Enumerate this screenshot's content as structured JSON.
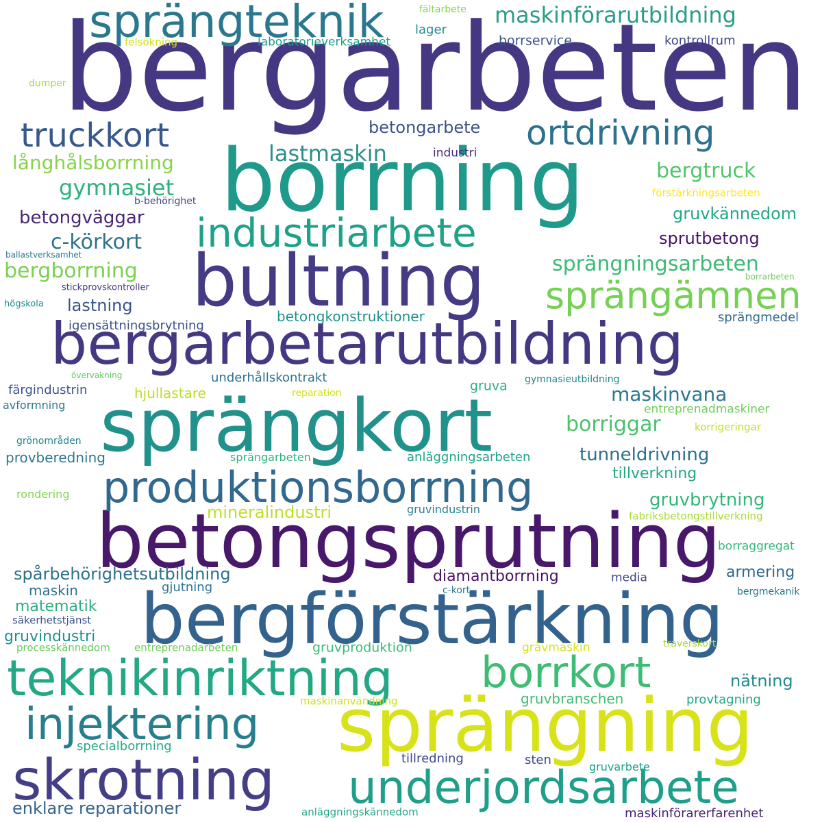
{
  "words": [
    {
      "text": "bergarbeten",
      "color": "#453781"
    },
    {
      "text": "borrning",
      "color": "#1f9a8a"
    },
    {
      "text": "bultning",
      "color": "#443b84"
    },
    {
      "text": "bergarbetarutbildning",
      "color": "#453781"
    },
    {
      "text": "sprängkort",
      "color": "#21918c"
    },
    {
      "text": "betongsprutning",
      "color": "#48186a"
    },
    {
      "text": "bergförstärkning",
      "color": "#33638d"
    },
    {
      "text": "sprängning",
      "color": "#d8e219"
    },
    {
      "text": "sprängteknik",
      "color": "#2a788e"
    },
    {
      "text": "teknikinriktning",
      "color": "#22a884"
    },
    {
      "text": "skrotning",
      "color": "#433e85"
    },
    {
      "text": "injektering",
      "color": "#277f8e"
    },
    {
      "text": "underjordsarbete",
      "color": "#1f9e89"
    },
    {
      "text": "borrkort",
      "color": "#3dbc74"
    },
    {
      "text": "produktionsborrning",
      "color": "#31688e"
    },
    {
      "text": "industriarbete",
      "color": "#1fa188"
    },
    {
      "text": "ortdrivning",
      "color": "#2c728e"
    },
    {
      "text": "truckkort",
      "color": "#38588c"
    },
    {
      "text": "sprängämnen",
      "color": "#75d054"
    },
    {
      "text": "maskinförarutbildning",
      "color": "#2a9d8a"
    },
    {
      "text": "sprängningsarbeten",
      "color": "#3bbb75"
    },
    {
      "text": "lastmaskin",
      "color": "#2c8f8c"
    },
    {
      "text": "betongarbete",
      "color": "#3b528b"
    },
    {
      "text": "långhålsborrning",
      "color": "#86d549"
    },
    {
      "text": "gymnasiet",
      "color": "#2db27d"
    },
    {
      "text": "bergtruck",
      "color": "#52c569"
    },
    {
      "text": "gruvkännedom",
      "color": "#23a983"
    },
    {
      "text": "sprutbetong",
      "color": "#471365"
    },
    {
      "text": "betongväggar",
      "color": "#482677"
    },
    {
      "text": "c-körkort",
      "color": "#2c728e"
    },
    {
      "text": "bergborrning",
      "color": "#7ad151"
    },
    {
      "text": "lastning",
      "color": "#3a538b"
    },
    {
      "text": "igensättningsbrytning",
      "color": "#3b518b"
    },
    {
      "text": "betongkonstruktioner",
      "color": "#21918c"
    },
    {
      "text": "sprängmedel",
      "color": "#31688e"
    },
    {
      "text": "maskinvana",
      "color": "#2a788e"
    },
    {
      "text": "borriggar",
      "color": "#4ac16d"
    },
    {
      "text": "tunneldrivning",
      "color": "#2d708e"
    },
    {
      "text": "tillverkning",
      "color": "#22a884"
    },
    {
      "text": "gruvbrytning",
      "color": "#35b779"
    },
    {
      "text": "mineralindustri",
      "color": "#bddf26"
    },
    {
      "text": "gruvindustrin",
      "color": "#26828e"
    },
    {
      "text": "fabriksbetongstillverkning",
      "color": "#a8db34"
    },
    {
      "text": "borraggregat",
      "color": "#35b779"
    },
    {
      "text": "armering",
      "color": "#31688e"
    },
    {
      "text": "spårbehörighetsutbildning",
      "color": "#2d708e"
    },
    {
      "text": "diamantborrning",
      "color": "#471164"
    },
    {
      "text": "media",
      "color": "#414487"
    },
    {
      "text": "gjutning",
      "color": "#2c738e"
    },
    {
      "text": "c-kort",
      "color": "#2a788e"
    },
    {
      "text": "bergmekanik",
      "color": "#2a788e"
    },
    {
      "text": "maskin",
      "color": "#2e6f8e"
    },
    {
      "text": "matematik",
      "color": "#2ab07f"
    },
    {
      "text": "säkerhetstjänst",
      "color": "#3b518b"
    },
    {
      "text": "gruvindustri",
      "color": "#20928c"
    },
    {
      "text": "processkännedom",
      "color": "#67cc5c"
    },
    {
      "text": "entreprenadarbeten",
      "color": "#6ece58"
    },
    {
      "text": "gruvproduktion",
      "color": "#3bbb75"
    },
    {
      "text": "grävmaskin",
      "color": "#d8e219"
    },
    {
      "text": "traverskort",
      "color": "#a5db36"
    },
    {
      "text": "nätning",
      "color": "#23888e"
    },
    {
      "text": "maskinanvändning",
      "color": "#cde11d"
    },
    {
      "text": "gruvbranschen",
      "color": "#3dbc74"
    },
    {
      "text": "provtagning",
      "color": "#22a785"
    },
    {
      "text": "specialborrning",
      "color": "#25ab82"
    },
    {
      "text": "tillredning",
      "color": "#3e4a89"
    },
    {
      "text": "sten",
      "color": "#3e4989"
    },
    {
      "text": "gruvarbete",
      "color": "#1fa188"
    },
    {
      "text": "enklare reparationer",
      "color": "#33638d"
    },
    {
      "text": "anläggningskännedom",
      "color": "#22a785"
    },
    {
      "text": "maskinförarerfarenhet",
      "color": "#482475"
    },
    {
      "text": "fältarbete",
      "color": "#84d44b"
    },
    {
      "text": "lager",
      "color": "#23898e"
    },
    {
      "text": "felsökning",
      "color": "#d0e11c"
    },
    {
      "text": "laboratorieverksamhet",
      "color": "#1e9c89"
    },
    {
      "text": "borrservice",
      "color": "#3b528b"
    },
    {
      "text": "kontrollrum",
      "color": "#3f4788"
    },
    {
      "text": "dumper",
      "color": "#a5db36"
    },
    {
      "text": "industri",
      "color": "#482878"
    },
    {
      "text": "b-behörighet",
      "color": "#424186"
    },
    {
      "text": "förstärkningsarbeten",
      "color": "#fde725"
    },
    {
      "text": "ballastverksamhet",
      "color": "#2a788e"
    },
    {
      "text": "stickprovskontroller",
      "color": "#453882"
    },
    {
      "text": "borrarbeten",
      "color": "#6ccd5a"
    },
    {
      "text": "högskola",
      "color": "#238a8d"
    },
    {
      "text": "underhållskontrakt",
      "color": "#2c728e"
    },
    {
      "text": "övervakning",
      "color": "#5ec962"
    },
    {
      "text": "gymnasieutbildning",
      "color": "#25848e"
    },
    {
      "text": "färgindustrin",
      "color": "#3b528b"
    },
    {
      "text": "hjullastare",
      "color": "#bade28"
    },
    {
      "text": "gruva",
      "color": "#28ae80"
    },
    {
      "text": "reparation",
      "color": "#d2e21b"
    },
    {
      "text": "avformning",
      "color": "#2c738e"
    },
    {
      "text": "entreprenadmaskiner",
      "color": "#6ece58"
    },
    {
      "text": "grönområden",
      "color": "#26818e"
    },
    {
      "text": "korrigeringar",
      "color": "#c2df23"
    },
    {
      "text": "provberedning",
      "color": "#2a788e"
    },
    {
      "text": "sprängarbeten",
      "color": "#2eb37c"
    },
    {
      "text": "anläggningsarbeten",
      "color": "#20a386"
    },
    {
      "text": "rondering",
      "color": "#7fd34e"
    }
  ]
}
